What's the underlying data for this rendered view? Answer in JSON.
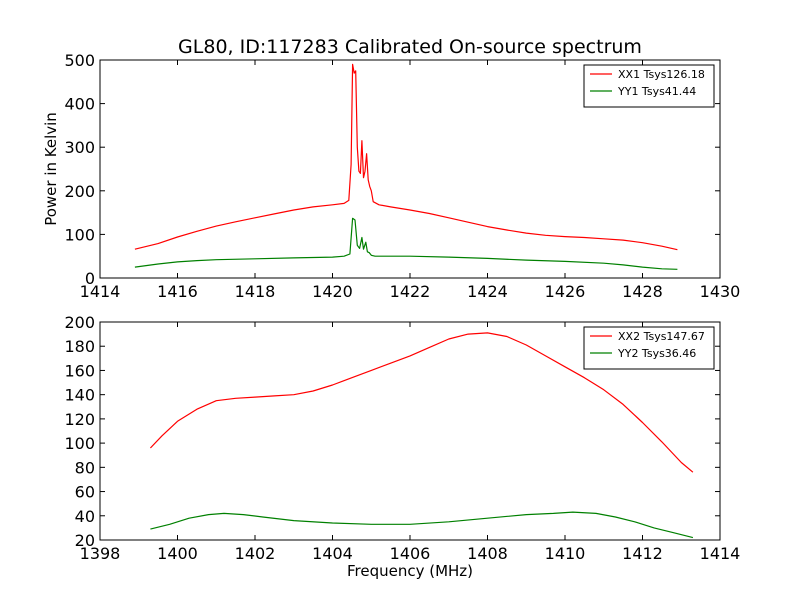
{
  "chart_data": [
    {
      "type": "line",
      "title": "GL80, ID:117283 Calibrated On-source spectrum",
      "xlabel": "",
      "ylabel": "Power in Kelvin",
      "xlim": [
        1414,
        1430
      ],
      "ylim": [
        0,
        500
      ],
      "xticks": [
        1414,
        1416,
        1418,
        1420,
        1422,
        1424,
        1426,
        1428,
        1430
      ],
      "yticks": [
        0,
        100,
        200,
        300,
        400,
        500
      ],
      "legend_position": "top-right",
      "series": [
        {
          "name": "XX1 Tsys126.18",
          "color": "#ff0000",
          "x": [
            1414.9,
            1415.5,
            1416.0,
            1416.5,
            1417.0,
            1417.5,
            1418.0,
            1418.5,
            1419.0,
            1419.5,
            1420.0,
            1420.3,
            1420.42,
            1420.48,
            1420.52,
            1420.56,
            1420.6,
            1420.64,
            1420.68,
            1420.72,
            1420.76,
            1420.8,
            1420.84,
            1420.88,
            1420.92,
            1420.96,
            1421.0,
            1421.05,
            1421.2,
            1421.5,
            1422.0,
            1422.5,
            1423.0,
            1423.5,
            1424.0,
            1424.5,
            1425.0,
            1425.5,
            1426.0,
            1426.5,
            1427.0,
            1427.5,
            1428.0,
            1428.5,
            1428.9
          ],
          "y": [
            66,
            79,
            94,
            107,
            119,
            129,
            138,
            147,
            156,
            163,
            168,
            171,
            178,
            260,
            490,
            470,
            475,
            300,
            245,
            240,
            315,
            230,
            245,
            285,
            225,
            210,
            200,
            175,
            168,
            163,
            156,
            148,
            138,
            128,
            118,
            110,
            103,
            98,
            95,
            93,
            90,
            87,
            81,
            73,
            65
          ]
        },
        {
          "name": "YY1 Tsys41.44",
          "color": "#008000",
          "x": [
            1414.9,
            1415.5,
            1416.0,
            1416.5,
            1417.0,
            1418.0,
            1419.0,
            1420.0,
            1420.3,
            1420.45,
            1420.52,
            1420.58,
            1420.64,
            1420.7,
            1420.76,
            1420.8,
            1420.86,
            1420.9,
            1420.95,
            1421.0,
            1421.1,
            1421.5,
            1422.0,
            1423.0,
            1424.0,
            1425.0,
            1426.0,
            1427.0,
            1427.5,
            1428.0,
            1428.5,
            1428.9
          ],
          "y": [
            25,
            32,
            37,
            40,
            42,
            44,
            46,
            48,
            50,
            55,
            137,
            133,
            75,
            68,
            93,
            66,
            82,
            60,
            58,
            52,
            50,
            50,
            50,
            48,
            45,
            41,
            38,
            34,
            30,
            25,
            21,
            20
          ]
        }
      ]
    },
    {
      "type": "line",
      "title": "",
      "xlabel": "Frequency (MHz)",
      "ylabel": "",
      "xlim": [
        1398,
        1414
      ],
      "ylim": [
        20,
        200
      ],
      "xticks": [
        1398,
        1400,
        1402,
        1404,
        1406,
        1408,
        1410,
        1412,
        1414
      ],
      "yticks": [
        20,
        40,
        60,
        80,
        100,
        120,
        140,
        160,
        180,
        200
      ],
      "legend_position": "top-right",
      "series": [
        {
          "name": "XX2 Tsys147.67",
          "color": "#ff0000",
          "x": [
            1399.3,
            1399.6,
            1400.0,
            1400.5,
            1401.0,
            1401.5,
            1402.0,
            1402.5,
            1403.0,
            1403.5,
            1404.0,
            1404.5,
            1405.0,
            1405.5,
            1406.0,
            1406.5,
            1407.0,
            1407.5,
            1408.0,
            1408.5,
            1409.0,
            1409.5,
            1410.0,
            1410.5,
            1411.0,
            1411.5,
            1412.0,
            1412.5,
            1413.0,
            1413.3
          ],
          "y": [
            96,
            106,
            118,
            128,
            135,
            137,
            138,
            139,
            140,
            143,
            148,
            154,
            160,
            166,
            172,
            179,
            186,
            190,
            191,
            188,
            181,
            172,
            163,
            154,
            144,
            132,
            117,
            101,
            84,
            76
          ]
        },
        {
          "name": "YY2 Tsys36.46",
          "color": "#008000",
          "x": [
            1399.3,
            1399.8,
            1400.3,
            1400.8,
            1401.2,
            1401.7,
            1402.2,
            1403.0,
            1404.0,
            1405.0,
            1406.0,
            1407.0,
            1408.0,
            1409.0,
            1409.7,
            1410.2,
            1410.8,
            1411.3,
            1411.8,
            1412.3,
            1412.8,
            1413.3
          ],
          "y": [
            29,
            33,
            38,
            41,
            42,
            41,
            39,
            36,
            34,
            33,
            33,
            35,
            38,
            41,
            42,
            43,
            42,
            39,
            35,
            30,
            26,
            22
          ]
        }
      ]
    }
  ]
}
